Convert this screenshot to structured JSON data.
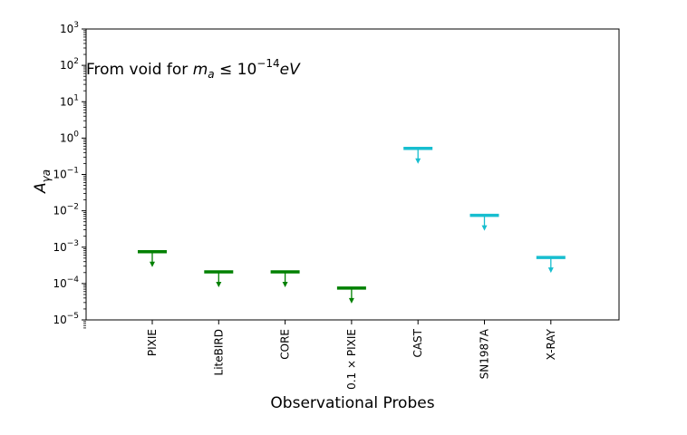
{
  "chart_data": {
    "type": "scatter",
    "title": "",
    "xlabel": "Observational Probes",
    "ylabel_base": "A",
    "ylabel_sub": "γa",
    "yscale": "log",
    "ylim": [
      1e-05,
      1000
    ],
    "grid": false,
    "legend": "none",
    "annotation": {
      "prefix": "From void for ",
      "m_base": "m",
      "m_sub": "a",
      "relation": " ≤ 10",
      "exponent": "−14",
      "unit": "eV"
    },
    "y_tick_labels": [
      {
        "exp": -5,
        "base": "10",
        "sup": "−5"
      },
      {
        "exp": -4,
        "base": "10",
        "sup": "−4"
      },
      {
        "exp": -3,
        "base": "10",
        "sup": "−3"
      },
      {
        "exp": -2,
        "base": "10",
        "sup": "−2"
      },
      {
        "exp": -1,
        "base": "10",
        "sup": "−1"
      },
      {
        "exp": 0,
        "base": "10",
        "sup": "0"
      },
      {
        "exp": 1,
        "base": "10",
        "sup": "1"
      },
      {
        "exp": 2,
        "base": "10",
        "sup": "2"
      },
      {
        "exp": 3,
        "base": "10",
        "sup": "3"
      }
    ],
    "points": [
      {
        "category": "PIXIE",
        "value": 0.00075,
        "color": "#008000"
      },
      {
        "category": "LiteBIRD",
        "value": 0.00021,
        "color": "#008000"
      },
      {
        "category": "CORE",
        "value": 0.00021,
        "color": "#008000"
      },
      {
        "category": "0.1 × PIXIE",
        "value": 7.5e-05,
        "color": "#008000"
      },
      {
        "category": "CAST",
        "value": 0.52,
        "color": "#17becf"
      },
      {
        "category": "SN1987A",
        "value": 0.0075,
        "color": "#17becf"
      },
      {
        "category": "X-RAY",
        "value": 0.00052,
        "color": "#17becf"
      }
    ],
    "marker": "upper-limit"
  }
}
